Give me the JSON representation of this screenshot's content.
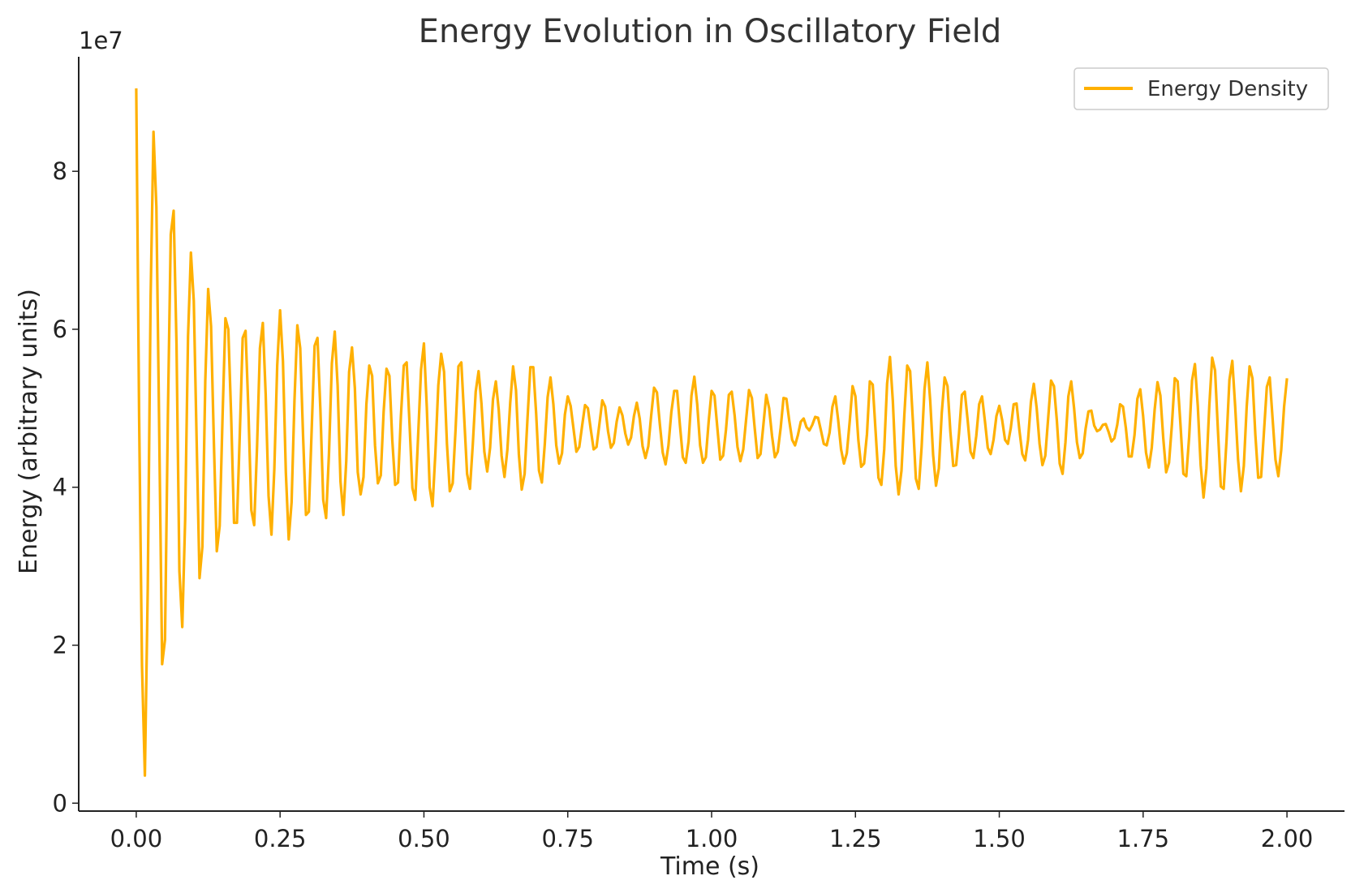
{
  "chart_data": {
    "type": "line",
    "title": "Energy Evolution in Oscillatory Field",
    "xlabel": "Time (s)",
    "ylabel": "Energy (arbitrary units)",
    "y_offset_label": "1e7",
    "xlim": [
      -0.1,
      2.1
    ],
    "ylim": [
      -0.1,
      9.45
    ],
    "x_ticks": [
      0.0,
      0.25,
      0.5,
      0.75,
      1.0,
      1.25,
      1.5,
      1.75,
      2.0
    ],
    "x_tick_labels": [
      "0.00",
      "0.25",
      "0.50",
      "0.75",
      "1.00",
      "1.25",
      "1.50",
      "1.75",
      "2.00"
    ],
    "y_ticks": [
      0,
      2,
      4,
      6,
      8
    ],
    "y_tick_labels": [
      "0",
      "2",
      "4",
      "6",
      "8"
    ],
    "y_unit_multiplier": 10000000,
    "grid": false,
    "legend_position": "top-right",
    "series": [
      {
        "name": "Energy Density",
        "color": "#FFB000",
        "x": [
          0.0,
          0.005,
          0.01,
          0.015,
          0.02,
          0.025,
          0.03,
          0.035,
          0.04,
          0.045,
          0.05,
          0.055,
          0.06,
          0.065,
          0.07,
          0.075,
          0.08,
          0.085,
          0.09,
          0.095,
          0.1,
          0.105,
          0.11,
          0.115,
          0.12,
          0.125,
          0.13,
          0.135,
          0.14,
          0.145,
          0.15,
          0.155,
          0.16,
          0.165,
          0.17,
          0.175,
          0.18,
          0.185,
          0.19,
          0.195,
          0.2,
          0.205,
          0.21,
          0.215,
          0.22,
          0.225,
          0.23,
          0.235,
          0.24,
          0.245,
          0.25,
          0.255,
          0.26,
          0.265,
          0.27,
          0.275,
          0.28,
          0.285,
          0.29,
          0.295,
          0.3,
          0.305,
          0.31,
          0.315,
          0.32,
          0.325,
          0.33,
          0.335,
          0.34,
          0.345,
          0.35,
          0.355,
          0.36,
          0.365,
          0.37,
          0.375,
          0.38,
          0.385,
          0.39,
          0.395,
          0.4,
          0.405,
          0.41,
          0.415,
          0.42,
          0.425,
          0.43,
          0.435,
          0.44,
          0.445,
          0.45,
          0.455,
          0.46,
          0.465,
          0.47,
          0.475,
          0.48,
          0.485,
          0.49,
          0.495,
          0.5,
          0.505,
          0.51,
          0.515,
          0.52,
          0.525,
          0.53,
          0.535,
          0.54,
          0.545,
          0.55,
          0.555,
          0.56,
          0.565,
          0.57,
          0.575,
          0.58,
          0.585,
          0.59,
          0.595,
          0.6,
          0.605,
          0.61,
          0.615,
          0.62,
          0.625,
          0.63,
          0.635,
          0.64,
          0.645,
          0.65,
          0.655,
          0.66,
          0.665,
          0.67,
          0.675,
          0.68,
          0.685,
          0.69,
          0.695,
          0.7,
          0.705,
          0.71,
          0.715,
          0.72,
          0.725,
          0.73,
          0.735,
          0.74,
          0.745,
          0.75,
          0.755,
          0.76,
          0.765,
          0.77,
          0.775,
          0.78,
          0.785,
          0.79,
          0.795,
          0.8,
          0.805,
          0.81,
          0.815,
          0.82,
          0.825,
          0.83,
          0.835,
          0.84,
          0.845,
          0.85,
          0.855,
          0.86,
          0.865,
          0.87,
          0.875,
          0.88,
          0.885,
          0.89,
          0.895,
          0.9,
          0.905,
          0.91,
          0.915,
          0.92,
          0.925,
          0.93,
          0.935,
          0.94,
          0.945,
          0.95,
          0.955,
          0.96,
          0.965,
          0.97,
          0.975,
          0.98,
          0.985,
          0.99,
          0.995,
          1.0,
          1.005,
          1.01,
          1.015,
          1.02,
          1.025,
          1.03,
          1.035,
          1.04,
          1.045,
          1.05,
          1.055,
          1.06,
          1.065,
          1.07,
          1.075,
          1.08,
          1.085,
          1.09,
          1.095,
          1.1,
          1.105,
          1.11,
          1.115,
          1.12,
          1.125,
          1.13,
          1.135,
          1.14,
          1.145,
          1.15,
          1.155,
          1.16,
          1.165,
          1.17,
          1.175,
          1.18,
          1.185,
          1.19,
          1.195,
          1.2,
          1.205,
          1.21,
          1.215,
          1.22,
          1.225,
          1.23,
          1.235,
          1.24,
          1.245,
          1.25,
          1.255,
          1.26,
          1.265,
          1.27,
          1.275,
          1.28,
          1.285,
          1.29,
          1.295,
          1.3,
          1.305,
          1.31,
          1.315,
          1.32,
          1.325,
          1.33,
          1.335,
          1.34,
          1.345,
          1.35,
          1.355,
          1.36,
          1.365,
          1.37,
          1.375,
          1.38,
          1.385,
          1.39,
          1.395,
          1.4,
          1.405,
          1.41,
          1.415,
          1.42,
          1.425,
          1.43,
          1.435,
          1.44,
          1.445,
          1.45,
          1.455,
          1.46,
          1.465,
          1.47,
          1.475,
          1.48,
          1.485,
          1.49,
          1.495,
          1.5,
          1.505,
          1.51,
          1.515,
          1.52,
          1.525,
          1.53,
          1.535,
          1.54,
          1.545,
          1.55,
          1.555,
          1.56,
          1.565,
          1.57,
          1.575,
          1.58,
          1.585,
          1.59,
          1.595,
          1.6,
          1.605,
          1.61,
          1.615,
          1.62,
          1.625,
          1.63,
          1.635,
          1.64,
          1.645,
          1.65,
          1.655,
          1.66,
          1.665,
          1.67,
          1.675,
          1.68,
          1.685,
          1.69,
          1.695,
          1.7,
          1.705,
          1.71,
          1.715,
          1.72,
          1.725,
          1.73,
          1.735,
          1.74,
          1.745,
          1.75,
          1.755,
          1.76,
          1.765,
          1.77,
          1.775,
          1.78,
          1.785,
          1.79,
          1.795,
          1.8,
          1.805,
          1.81,
          1.815,
          1.82,
          1.825,
          1.83,
          1.835,
          1.84,
          1.845,
          1.85,
          1.855,
          1.86,
          1.865,
          1.87,
          1.875,
          1.88,
          1.885,
          1.89,
          1.895,
          1.9,
          1.905,
          1.91,
          1.915,
          1.92,
          1.925,
          1.93,
          1.935,
          1.94,
          1.945,
          1.95,
          1.955,
          1.96,
          1.965,
          1.97,
          1.975,
          1.98,
          1.985,
          1.99,
          1.995,
          2.0
        ],
        "y": [
          9.05,
          4.9,
          1.74,
          0.35,
          2.72,
          6.42,
          8.5,
          7.55,
          4.67,
          1.76,
          2.07,
          4.91,
          7.2,
          7.5,
          5.8,
          2.94,
          2.23,
          3.59,
          5.91,
          6.97,
          6.36,
          4.58,
          2.85,
          3.25,
          5.35,
          6.51,
          6.04,
          4.55,
          3.19,
          3.51,
          4.89,
          6.14,
          6.0,
          4.89,
          3.55,
          3.55,
          4.68,
          5.89,
          5.98,
          4.96,
          3.71,
          3.52,
          4.52,
          5.76,
          6.08,
          5.17,
          3.89,
          3.4,
          4.23,
          5.54,
          6.24,
          5.59,
          4.19,
          3.34,
          3.81,
          5.1,
          6.05,
          5.76,
          4.64,
          3.65,
          3.69,
          4.75,
          5.79,
          5.89,
          4.99,
          3.84,
          3.61,
          4.43,
          5.57,
          5.97,
          5.29,
          4.07,
          3.65,
          4.33,
          5.46,
          5.77,
          5.25,
          4.19,
          3.91,
          4.13,
          5.05,
          5.54,
          5.41,
          4.53,
          4.05,
          4.15,
          4.96,
          5.5,
          5.41,
          4.6,
          4.03,
          4.06,
          4.9,
          5.54,
          5.58,
          4.8,
          3.99,
          3.84,
          4.66,
          5.49,
          5.82,
          5.01,
          4.0,
          3.76,
          4.45,
          5.29,
          5.69,
          5.46,
          4.55,
          3.95,
          4.05,
          4.73,
          5.53,
          5.58,
          4.88,
          4.17,
          3.98,
          4.55,
          5.21,
          5.47,
          5.06,
          4.45,
          4.2,
          4.5,
          5.11,
          5.34,
          4.98,
          4.4,
          4.13,
          4.47,
          5.07,
          5.53,
          5.23,
          4.42,
          3.97,
          4.17,
          4.87,
          5.52,
          5.52,
          4.94,
          4.21,
          4.06,
          4.54,
          5.14,
          5.39,
          5.05,
          4.53,
          4.3,
          4.43,
          4.92,
          5.15,
          5.03,
          4.74,
          4.45,
          4.51,
          4.78,
          5.04,
          5.0,
          4.73,
          4.48,
          4.51,
          4.8,
          5.1,
          5.02,
          4.71,
          4.5,
          4.56,
          4.83,
          5.01,
          4.91,
          4.68,
          4.54,
          4.63,
          4.9,
          5.07,
          4.87,
          4.52,
          4.37,
          4.52,
          4.91,
          5.26,
          5.2,
          4.8,
          4.44,
          4.29,
          4.53,
          4.95,
          5.22,
          5.22,
          4.78,
          4.38,
          4.31,
          4.58,
          5.16,
          5.4,
          5.05,
          4.53,
          4.31,
          4.38,
          4.84,
          5.22,
          5.16,
          4.75,
          4.35,
          4.4,
          4.73,
          5.17,
          5.21,
          4.91,
          4.51,
          4.33,
          4.48,
          4.86,
          5.23,
          5.13,
          4.74,
          4.37,
          4.42,
          4.79,
          5.17,
          5.0,
          4.65,
          4.38,
          4.45,
          4.75,
          5.13,
          5.12,
          4.84,
          4.6,
          4.53,
          4.66,
          4.83,
          4.87,
          4.76,
          4.72,
          4.79,
          4.89,
          4.88,
          4.72,
          4.55,
          4.53,
          4.69,
          5.02,
          5.15,
          4.85,
          4.48,
          4.3,
          4.43,
          4.83,
          5.28,
          5.15,
          4.6,
          4.26,
          4.3,
          4.67,
          5.34,
          5.3,
          4.71,
          4.12,
          4.03,
          4.48,
          5.31,
          5.65,
          5.09,
          4.27,
          3.91,
          4.21,
          4.92,
          5.54,
          5.47,
          4.82,
          4.11,
          3.98,
          4.51,
          5.24,
          5.58,
          5.09,
          4.41,
          4.02,
          4.24,
          4.94,
          5.39,
          5.28,
          4.7,
          4.27,
          4.28,
          4.68,
          5.17,
          5.21,
          4.85,
          4.45,
          4.37,
          4.65,
          5.05,
          5.15,
          4.84,
          4.5,
          4.42,
          4.6,
          4.9,
          5.03,
          4.85,
          4.6,
          4.55,
          4.75,
          5.05,
          5.06,
          4.72,
          4.42,
          4.34,
          4.6,
          5.08,
          5.31,
          5.0,
          4.55,
          4.28,
          4.4,
          4.88,
          5.35,
          5.28,
          4.85,
          4.3,
          4.17,
          4.57,
          5.15,
          5.34,
          5.0,
          4.57,
          4.37,
          4.43,
          4.74,
          4.96,
          4.97,
          4.78,
          4.71,
          4.73,
          4.79,
          4.8,
          4.7,
          4.58,
          4.62,
          4.79,
          5.05,
          5.02,
          4.75,
          4.39,
          4.39,
          4.66,
          5.12,
          5.24,
          4.9,
          4.44,
          4.25,
          4.5,
          4.98,
          5.33,
          5.16,
          4.62,
          4.19,
          4.31,
          4.79,
          5.38,
          5.34,
          4.78,
          4.17,
          4.14,
          4.64,
          5.35,
          5.56,
          5.03,
          4.28,
          3.87,
          4.24,
          5.03,
          5.64,
          5.48,
          4.72,
          4.01,
          3.98,
          4.6,
          5.36,
          5.6,
          5.02,
          4.35,
          3.95,
          4.27,
          5.02,
          5.53,
          5.38,
          4.67,
          4.12,
          4.13,
          4.7,
          5.27,
          5.39,
          4.87,
          4.35,
          4.14,
          4.47,
          5.02,
          5.38
        ]
      }
    ]
  }
}
